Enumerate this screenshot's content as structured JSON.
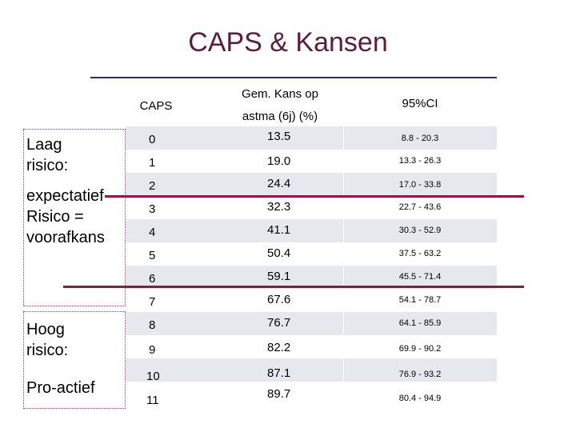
{
  "title": "CAPS & Kansen",
  "header": {
    "caps": "CAPS",
    "kans_line1": "Gem. Kans op",
    "kans_line2": "astma (6j) (%)",
    "ci": "95%CI"
  },
  "rows": [
    {
      "caps": "0",
      "kans": "13.5",
      "ci": "8.8 - 20.3"
    },
    {
      "caps": "1",
      "kans": "19.0",
      "ci": "13.3 - 26.3"
    },
    {
      "caps": "2",
      "kans": "24.4",
      "ci": "17.0 - 33.8"
    },
    {
      "caps": "3",
      "kans": "32.3",
      "ci": "22.7 - 43.6"
    },
    {
      "caps": "4",
      "kans": "41.1",
      "ci": "30.3 - 52.9"
    },
    {
      "caps": "5",
      "kans": "50.4",
      "ci": "37.5 - 63.2"
    },
    {
      "caps": "6",
      "kans": "59.1",
      "ci": "45.5 - 71.4"
    },
    {
      "caps": "7",
      "kans": "67.6",
      "ci": "54.1 - 78.7"
    },
    {
      "caps": "8",
      "kans": "76.7",
      "ci": "64.1 - 85.9"
    },
    {
      "caps": "9",
      "kans": "82.2",
      "ci": "69.9 - 90.2"
    },
    {
      "caps": "10",
      "kans": "87.1",
      "ci": "76.9 - 93.2"
    },
    {
      "caps": "11",
      "kans": "89.7",
      "ci": "80.4 - 94.9"
    }
  ],
  "labels": {
    "laag_line1": "Laag",
    "laag_line2": "risico:",
    "exp_line1": "expectatief",
    "exp_line2": "Risico =",
    "exp_line3": "voorafkans",
    "hoog_line1": "Hoog",
    "hoog_line2": "risico:",
    "pro": "Pro-actief"
  },
  "colors": {
    "title": "#5c1c3e",
    "accent_line": "#8a1a4a",
    "header_rule": "#2e2e6e",
    "stripe": "#e6e8ee"
  }
}
